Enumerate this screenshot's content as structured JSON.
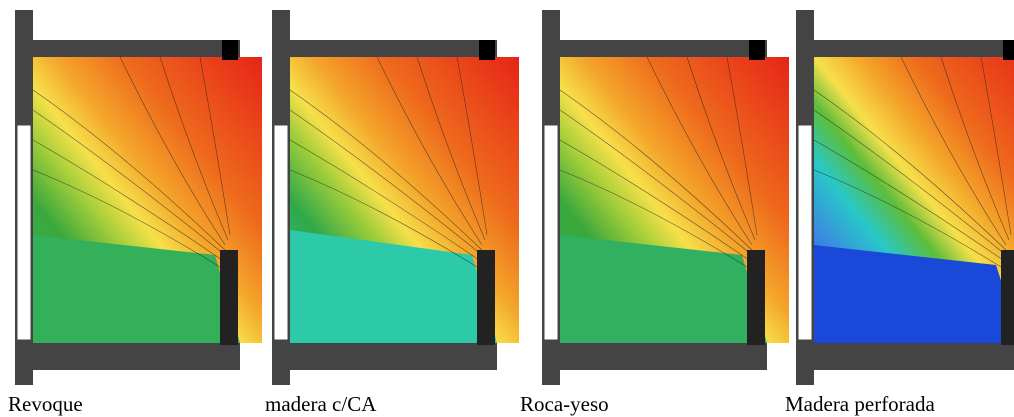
{
  "captions": [
    "Revoque",
    "madera c/CA",
    "Roca-yeso",
    "Madera perforada"
  ]
}
